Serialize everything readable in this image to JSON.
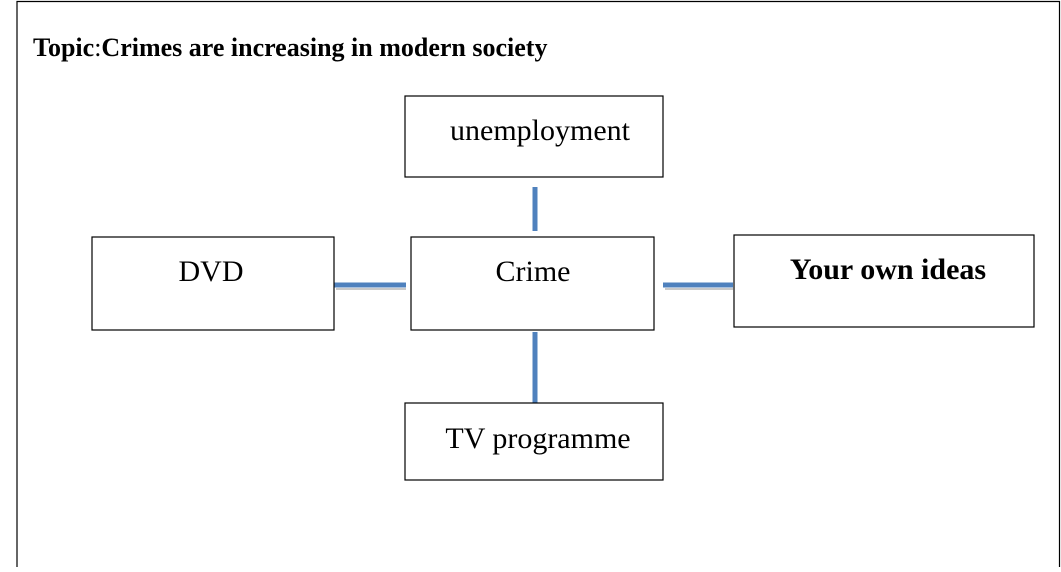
{
  "header": {
    "label": "Topic",
    "separator": ":",
    "title": "Crimes are increasing in modern society"
  },
  "nodes": [
    {
      "label": "unemployment"
    },
    {
      "label": "DVD"
    },
    {
      "label": "Crime"
    },
    {
      "label": "Your own ideas"
    },
    {
      "label": "TV programme"
    }
  ]
}
